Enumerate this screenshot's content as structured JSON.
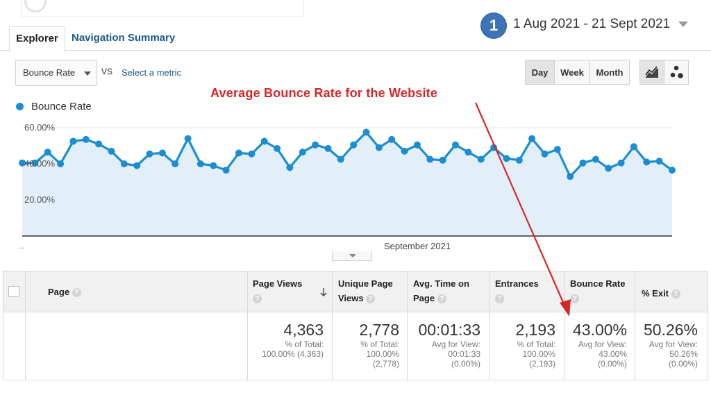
{
  "tabs": [
    {
      "label": "Explorer"
    },
    {
      "label": "Navigation Summary"
    }
  ],
  "date": {
    "badge": "1",
    "range": "1 Aug 2021 - 21 Sept 2021"
  },
  "controls": {
    "metric": "Bounce Rate",
    "vs": "VS",
    "select_metric": "Select a metric",
    "day": "Day",
    "week": "Week",
    "month": "Month"
  },
  "annotation": "Average Bounce Rate for the Website",
  "legend": "Bounce Rate",
  "colors": {
    "series": "#1b8dd0",
    "fill": "#e2eff8",
    "annotation": "#d62728"
  },
  "chart_data": {
    "type": "area",
    "x_label_center": "September 2021",
    "x_label_left": "...",
    "y_ticks": [
      "60.00%",
      "40.00%",
      "20.00%"
    ],
    "ylim": [
      0,
      60
    ],
    "series": [
      {
        "name": "Bounce Rate",
        "values": [
          40.5,
          40.5,
          46.5,
          40,
          52.5,
          53.5,
          51,
          47,
          40,
          39,
          45.5,
          46,
          40,
          54,
          40,
          39,
          36.5,
          46,
          45.5,
          52.5,
          48.5,
          38,
          46.5,
          50.5,
          48.5,
          42.5,
          50.5,
          57.5,
          49,
          53.5,
          47,
          50.5,
          42.5,
          42,
          50.5,
          46.5,
          42.5,
          49,
          43,
          42,
          54,
          45.5,
          48,
          33,
          40.5,
          42.5,
          37.5,
          40.5,
          49.5,
          41,
          41.5,
          36.5
        ]
      }
    ]
  },
  "table": {
    "headers": {
      "page": "Page",
      "page_views": "Page Views",
      "unique_line1": "Unique Page",
      "unique_line2": "Views",
      "avg_time_line1": "Avg. Time on",
      "avg_time_line2": "Page",
      "entrances": "Entrances",
      "bounce_rate": "Bounce Rate",
      "exit": "% Exit",
      "help": "?"
    },
    "totals": {
      "page_views": {
        "value": "4,363",
        "l1": "% of Total:",
        "l2": "100.00% (4,363)"
      },
      "unique": {
        "value": "2,778",
        "l1": "% of Total:",
        "l2": "100.00%",
        "l3": "(2,778)"
      },
      "avg_time": {
        "value": "00:01:33",
        "l1": "Avg for View:",
        "l2": "00:01:33",
        "l3": "(0.00%)"
      },
      "entrances": {
        "value": "2,193",
        "l1": "% of Total:",
        "l2": "100.00%",
        "l3": "(2,193)"
      },
      "bounce": {
        "value": "43.00%",
        "l1": "Avg for View:",
        "l2": "43.00%",
        "l3": "(0.00%)"
      },
      "exit": {
        "value": "50.26%",
        "l1": "Avg for View:",
        "l2": "50.26%",
        "l3": "(0.00%)"
      }
    }
  }
}
